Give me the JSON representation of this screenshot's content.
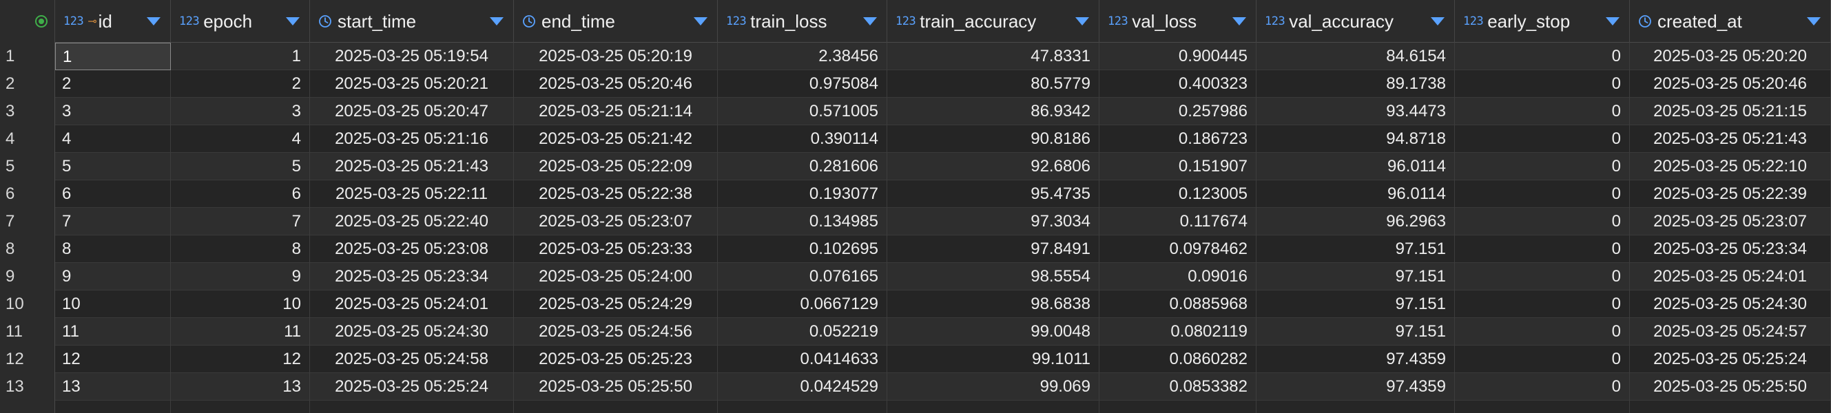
{
  "colors": {
    "header_bg": "#2b2b2b",
    "row_odd": "#2e2e2e",
    "row_even": "#252525",
    "type_badge": "#5aa2ff",
    "key_icon": "#d38b3c",
    "status_dot": "#3fae49"
  },
  "columns": [
    {
      "key": "id",
      "name": "id",
      "type_badge": "123",
      "icon": "primary-key-icon",
      "align": "left"
    },
    {
      "key": "epoch",
      "name": "epoch",
      "type_badge": "123",
      "icon": "",
      "align": "right"
    },
    {
      "key": "start_time",
      "name": "start_time",
      "type_badge": "",
      "icon": "clock-icon",
      "align": "center"
    },
    {
      "key": "end_time",
      "name": "end_time",
      "type_badge": "",
      "icon": "clock-icon",
      "align": "center"
    },
    {
      "key": "train_loss",
      "name": "train_loss",
      "type_badge": "123",
      "icon": "",
      "align": "right"
    },
    {
      "key": "train_accuracy",
      "name": "train_accuracy",
      "type_badge": "123",
      "icon": "",
      "align": "right"
    },
    {
      "key": "val_loss",
      "name": "val_loss",
      "type_badge": "123",
      "icon": "",
      "align": "right"
    },
    {
      "key": "val_accuracy",
      "name": "val_accuracy",
      "type_badge": "123",
      "icon": "",
      "align": "right"
    },
    {
      "key": "early_stop",
      "name": "early_stop",
      "type_badge": "123",
      "icon": "",
      "align": "right"
    },
    {
      "key": "created_at",
      "name": "created_at",
      "type_badge": "",
      "icon": "clock-icon",
      "align": "center"
    }
  ],
  "rows": [
    {
      "rownum": "1",
      "id": "1",
      "epoch": "1",
      "start_time": "2025-03-25 05:19:54",
      "end_time": "2025-03-25 05:20:19",
      "train_loss": "2.38456",
      "train_accuracy": "47.8331",
      "val_loss": "0.900445",
      "val_accuracy": "84.6154",
      "early_stop": "0",
      "created_at": "2025-03-25 05:20:20"
    },
    {
      "rownum": "2",
      "id": "2",
      "epoch": "2",
      "start_time": "2025-03-25 05:20:21",
      "end_time": "2025-03-25 05:20:46",
      "train_loss": "0.975084",
      "train_accuracy": "80.5779",
      "val_loss": "0.400323",
      "val_accuracy": "89.1738",
      "early_stop": "0",
      "created_at": "2025-03-25 05:20:46"
    },
    {
      "rownum": "3",
      "id": "3",
      "epoch": "3",
      "start_time": "2025-03-25 05:20:47",
      "end_time": "2025-03-25 05:21:14",
      "train_loss": "0.571005",
      "train_accuracy": "86.9342",
      "val_loss": "0.257986",
      "val_accuracy": "93.4473",
      "early_stop": "0",
      "created_at": "2025-03-25 05:21:15"
    },
    {
      "rownum": "4",
      "id": "4",
      "epoch": "4",
      "start_time": "2025-03-25 05:21:16",
      "end_time": "2025-03-25 05:21:42",
      "train_loss": "0.390114",
      "train_accuracy": "90.8186",
      "val_loss": "0.186723",
      "val_accuracy": "94.8718",
      "early_stop": "0",
      "created_at": "2025-03-25 05:21:43"
    },
    {
      "rownum": "5",
      "id": "5",
      "epoch": "5",
      "start_time": "2025-03-25 05:21:43",
      "end_time": "2025-03-25 05:22:09",
      "train_loss": "0.281606",
      "train_accuracy": "92.6806",
      "val_loss": "0.151907",
      "val_accuracy": "96.0114",
      "early_stop": "0",
      "created_at": "2025-03-25 05:22:10"
    },
    {
      "rownum": "6",
      "id": "6",
      "epoch": "6",
      "start_time": "2025-03-25 05:22:11",
      "end_time": "2025-03-25 05:22:38",
      "train_loss": "0.193077",
      "train_accuracy": "95.4735",
      "val_loss": "0.123005",
      "val_accuracy": "96.0114",
      "early_stop": "0",
      "created_at": "2025-03-25 05:22:39"
    },
    {
      "rownum": "7",
      "id": "7",
      "epoch": "7",
      "start_time": "2025-03-25 05:22:40",
      "end_time": "2025-03-25 05:23:07",
      "train_loss": "0.134985",
      "train_accuracy": "97.3034",
      "val_loss": "0.117674",
      "val_accuracy": "96.2963",
      "early_stop": "0",
      "created_at": "2025-03-25 05:23:07"
    },
    {
      "rownum": "8",
      "id": "8",
      "epoch": "8",
      "start_time": "2025-03-25 05:23:08",
      "end_time": "2025-03-25 05:23:33",
      "train_loss": "0.102695",
      "train_accuracy": "97.8491",
      "val_loss": "0.0978462",
      "val_accuracy": "97.151",
      "early_stop": "0",
      "created_at": "2025-03-25 05:23:34"
    },
    {
      "rownum": "9",
      "id": "9",
      "epoch": "9",
      "start_time": "2025-03-25 05:23:34",
      "end_time": "2025-03-25 05:24:00",
      "train_loss": "0.076165",
      "train_accuracy": "98.5554",
      "val_loss": "0.09016",
      "val_accuracy": "97.151",
      "early_stop": "0",
      "created_at": "2025-03-25 05:24:01"
    },
    {
      "rownum": "10",
      "id": "10",
      "epoch": "10",
      "start_time": "2025-03-25 05:24:01",
      "end_time": "2025-03-25 05:24:29",
      "train_loss": "0.0667129",
      "train_accuracy": "98.6838",
      "val_loss": "0.0885968",
      "val_accuracy": "97.151",
      "early_stop": "0",
      "created_at": "2025-03-25 05:24:30"
    },
    {
      "rownum": "11",
      "id": "11",
      "epoch": "11",
      "start_time": "2025-03-25 05:24:30",
      "end_time": "2025-03-25 05:24:56",
      "train_loss": "0.052219",
      "train_accuracy": "99.0048",
      "val_loss": "0.0802119",
      "val_accuracy": "97.151",
      "early_stop": "0",
      "created_at": "2025-03-25 05:24:57"
    },
    {
      "rownum": "12",
      "id": "12",
      "epoch": "12",
      "start_time": "2025-03-25 05:24:58",
      "end_time": "2025-03-25 05:25:23",
      "train_loss": "0.0414633",
      "train_accuracy": "99.1011",
      "val_loss": "0.0860282",
      "val_accuracy": "97.4359",
      "early_stop": "0",
      "created_at": "2025-03-25 05:25:24"
    },
    {
      "rownum": "13",
      "id": "13",
      "epoch": "13",
      "start_time": "2025-03-25 05:25:24",
      "end_time": "2025-03-25 05:25:50",
      "train_loss": "0.0424529",
      "train_accuracy": "99.069",
      "val_loss": "0.0853382",
      "val_accuracy": "97.4359",
      "early_stop": "0",
      "created_at": "2025-03-25 05:25:50"
    }
  ],
  "selected_cell": {
    "row": 0,
    "column": "id"
  }
}
